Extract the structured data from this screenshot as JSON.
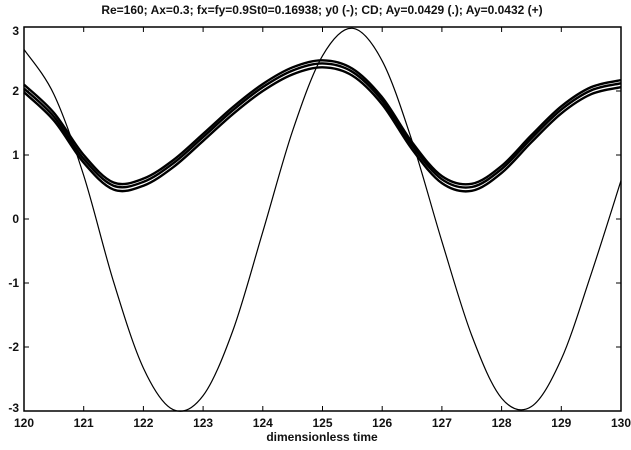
{
  "chart_data": {
    "type": "line",
    "title": "Re=160; Ax=0.3; fx=fy=0.9St0=0.16938; y0 (-); CD; Ay=0.0429 (.); Ay=0.0432 (+)",
    "xlabel": "dimensionless time",
    "ylabel": "",
    "xlim": [
      120,
      130
    ],
    "ylim": [
      -3,
      3
    ],
    "x_ticks": [
      "120",
      "121",
      "122",
      "123",
      "124",
      "125",
      "126",
      "127",
      "128",
      "129",
      "130"
    ],
    "y_ticks": [
      "3",
      "2",
      "1",
      "0",
      "-1",
      "-2",
      "-3"
    ],
    "grid": false,
    "line_color": "#000000",
    "series": [
      {
        "x": [
          120.0,
          120.5,
          121.0,
          121.5,
          122.0,
          122.5,
          123.0,
          123.5,
          124.0,
          124.5,
          125.0,
          125.5,
          126.0,
          126.5,
          127.0,
          127.5,
          128.0,
          128.5,
          129.0,
          129.5,
          130.0
        ],
        "values": [
          2.65,
          1.95,
          0.68,
          -0.98,
          -2.33,
          -2.98,
          -2.76,
          -1.74,
          -0.2,
          1.38,
          2.55,
          2.98,
          2.47,
          1.22,
          -0.35,
          -1.82,
          -2.8,
          -2.93,
          -2.19,
          -0.86,
          0.6
        ]
      },
      {
        "x": [
          120.0,
          120.5,
          121.0,
          121.5,
          122.0,
          122.5,
          123.0,
          123.5,
          124.0,
          124.5,
          125.0,
          125.5,
          126.0,
          126.5,
          127.0,
          127.5,
          128.0,
          128.5,
          129.0,
          129.5,
          130.0
        ],
        "values": [
          2.04,
          1.6,
          0.94,
          0.52,
          0.58,
          0.87,
          1.28,
          1.7,
          2.06,
          2.32,
          2.43,
          2.3,
          1.85,
          1.15,
          0.62,
          0.5,
          0.78,
          1.26,
          1.71,
          2.01,
          2.12
        ]
      },
      {
        "x": [
          120.0,
          120.5,
          121.0,
          121.5,
          122.0,
          122.5,
          123.0,
          123.5,
          124.0,
          124.5,
          125.0,
          125.5,
          126.0,
          126.5,
          127.0,
          127.5,
          128.0,
          128.5,
          129.0,
          129.5,
          130.0
        ],
        "values": [
          2.1,
          1.66,
          1.0,
          0.57,
          0.63,
          0.92,
          1.33,
          1.75,
          2.11,
          2.37,
          2.48,
          2.35,
          1.9,
          1.2,
          0.67,
          0.55,
          0.83,
          1.31,
          1.76,
          2.06,
          2.17
        ]
      },
      {
        "x": [
          120.0,
          120.5,
          121.0,
          121.5,
          122.0,
          122.5,
          123.0,
          123.5,
          124.0,
          124.5,
          125.0,
          125.5,
          126.0,
          126.5,
          127.0,
          127.5,
          128.0,
          128.5,
          129.0,
          129.5,
          130.0
        ],
        "values": [
          1.98,
          1.54,
          0.88,
          0.46,
          0.52,
          0.81,
          1.22,
          1.64,
          2.0,
          2.26,
          2.37,
          2.24,
          1.79,
          1.09,
          0.56,
          0.44,
          0.72,
          1.2,
          1.65,
          1.95,
          2.06
        ]
      }
    ]
  }
}
